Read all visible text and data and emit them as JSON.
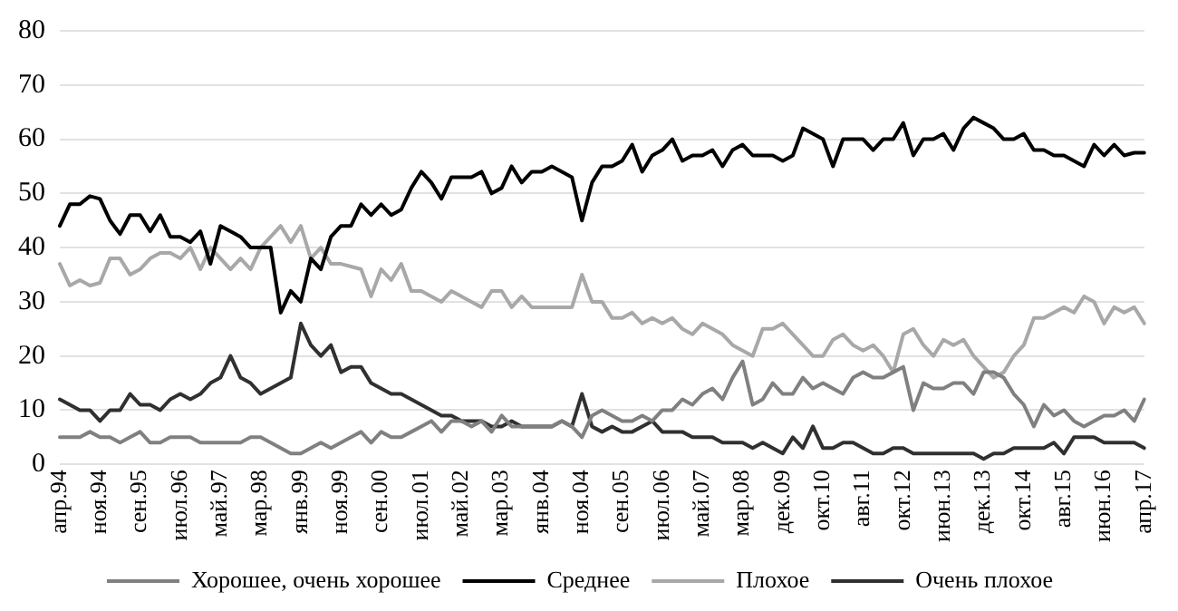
{
  "chart_data": {
    "type": "line",
    "categories": [
      "апр.94",
      null,
      null,
      null,
      "ноя.94",
      null,
      null,
      null,
      "сен.95",
      null,
      null,
      null,
      "июл.96",
      null,
      null,
      null,
      "май.97",
      null,
      null,
      null,
      "мар.98",
      null,
      null,
      null,
      "янв.99",
      null,
      null,
      null,
      "ноя.99",
      null,
      null,
      null,
      "сен.00",
      null,
      null,
      null,
      "июл.01",
      null,
      null,
      null,
      "май.02",
      null,
      null,
      null,
      "мар.03",
      null,
      null,
      null,
      "янв.04",
      null,
      null,
      null,
      "ноя.04",
      null,
      null,
      null,
      "сен.05",
      null,
      null,
      null,
      "июл.06",
      null,
      null,
      null,
      "май.07",
      null,
      null,
      null,
      "мар.08",
      null,
      null,
      null,
      "дек.09",
      null,
      null,
      null,
      "окт.10",
      null,
      null,
      null,
      "авг.11",
      null,
      null,
      null,
      "окт.12",
      null,
      null,
      null,
      "июн.13",
      null,
      null,
      null,
      "дек.13",
      null,
      null,
      null,
      "окт.14",
      null,
      null,
      null,
      "авг.15",
      null,
      null,
      null,
      "июн.16",
      null,
      null,
      null,
      "апр.17"
    ],
    "series": [
      {
        "name": "Хорошее, очень хорошее",
        "color": "#808080",
        "values": [
          5,
          5,
          5,
          6,
          5,
          5,
          4,
          5,
          6,
          4,
          4,
          5,
          5,
          5,
          4,
          4,
          4,
          4,
          4,
          5,
          5,
          4,
          3,
          2,
          2,
          3,
          4,
          3,
          4,
          5,
          6,
          4,
          6,
          5,
          5,
          6,
          7,
          8,
          6,
          8,
          8,
          7,
          8,
          6,
          9,
          7,
          7,
          7,
          7,
          7,
          8,
          7,
          5,
          9,
          10,
          9,
          8,
          8,
          9,
          8,
          10,
          10,
          12,
          11,
          13,
          14,
          12,
          16,
          19,
          11,
          12,
          15,
          13,
          13,
          16,
          14,
          15,
          14,
          13,
          16,
          17,
          16,
          16,
          17,
          18,
          10,
          15,
          14,
          14,
          15,
          15,
          13,
          17,
          17,
          16,
          13,
          11,
          7,
          11,
          9,
          10,
          8,
          7,
          8,
          9,
          9,
          10,
          8,
          12
        ]
      },
      {
        "name": "Среднее",
        "color": "#000000",
        "values": [
          44,
          48,
          48,
          49.5,
          49,
          45,
          42.5,
          46,
          46,
          43,
          46,
          42,
          42,
          41,
          43,
          37,
          44,
          43,
          42,
          40,
          40,
          40,
          28,
          32,
          30,
          38,
          36,
          42,
          44,
          44,
          48,
          46,
          48,
          46,
          47,
          51,
          54,
          52,
          49,
          53,
          53,
          53,
          54,
          50,
          51,
          55,
          52,
          54,
          54,
          55,
          54,
          53,
          45,
          52,
          55,
          55,
          56,
          59,
          54,
          57,
          58,
          60,
          56,
          57,
          57,
          58,
          55,
          58,
          59,
          57,
          57,
          57,
          56,
          57,
          62,
          61,
          60,
          55,
          60,
          60,
          60,
          58,
          60,
          60,
          63,
          57,
          60,
          60,
          61,
          58,
          62,
          64,
          63,
          62,
          60,
          60,
          61,
          58,
          58,
          57,
          57,
          56,
          55,
          59,
          57,
          59,
          57,
          57.5,
          57.5
        ]
      },
      {
        "name": "Плохое",
        "color": "#a8a8a8",
        "values": [
          37,
          33,
          34,
          33,
          33.5,
          38,
          38,
          35,
          36,
          38,
          39,
          39,
          38,
          40,
          36,
          40,
          38,
          36,
          38,
          36,
          40,
          42,
          44,
          41,
          44,
          38,
          40,
          37,
          37,
          36.5,
          36,
          31,
          36,
          34,
          37,
          32,
          32,
          31,
          30,
          32,
          31,
          30,
          29,
          32,
          32,
          29,
          31,
          29,
          29,
          29,
          29,
          29,
          35,
          30,
          30,
          27,
          27,
          28,
          26,
          27,
          26,
          27,
          25,
          24,
          26,
          25,
          24,
          22,
          21,
          20,
          25,
          25,
          26,
          24,
          22,
          20,
          20,
          23,
          24,
          22,
          21,
          22,
          20,
          17,
          24,
          25,
          22,
          20,
          23,
          22,
          23,
          20,
          18,
          16,
          17,
          20,
          22,
          27,
          27,
          28,
          29,
          28,
          31,
          30,
          26,
          29,
          28,
          29,
          26
        ]
      },
      {
        "name": "Очень плохое",
        "color": "#303030",
        "values": [
          12,
          11,
          10,
          10,
          8,
          10,
          10,
          13,
          11,
          11,
          10,
          12,
          13,
          12,
          13,
          15,
          16,
          20,
          16,
          15,
          13,
          14,
          15,
          16,
          26,
          22,
          20,
          22,
          17,
          18,
          18,
          15,
          14,
          13,
          13,
          12,
          11,
          10,
          9,
          9,
          8,
          8,
          8,
          7,
          7,
          8,
          7,
          7,
          7,
          7,
          8,
          7,
          13,
          7,
          6,
          7,
          6,
          6,
          7,
          8,
          6,
          6,
          6,
          5,
          5,
          5,
          4,
          4,
          4,
          3,
          4,
          3,
          2,
          5,
          3,
          7,
          3,
          3,
          4,
          4,
          3,
          2,
          2,
          3,
          3,
          2,
          2,
          2,
          2,
          2,
          2,
          2,
          1,
          2,
          2,
          3,
          3,
          3,
          3,
          4,
          2,
          5,
          5,
          5,
          4,
          4,
          4,
          4,
          3
        ]
      }
    ],
    "ylim": [
      0,
      80
    ],
    "yticks": [
      0,
      10,
      20,
      30,
      40,
      50,
      60,
      70,
      80
    ],
    "grid": "y",
    "legend": "bottom",
    "marker": "none",
    "line_style": "solid"
  }
}
